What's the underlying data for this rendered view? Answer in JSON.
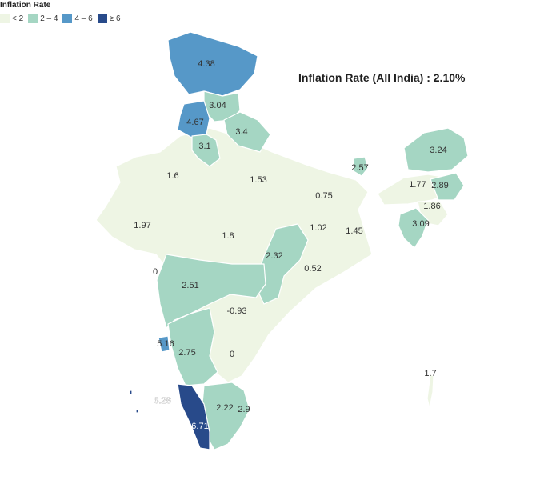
{
  "legend": {
    "title": "Inflation Rate",
    "items": [
      {
        "label": "< 2",
        "color": "#eef5e4"
      },
      {
        "label": "2 – 4",
        "color": "#a5d6c3"
      },
      {
        "label": "4 – 6",
        "color": "#5698c8"
      },
      {
        "label": "≥ 6",
        "color": "#284a8a"
      }
    ]
  },
  "headline": "Inflation Rate (All India) : 2.10%",
  "regions": [
    {
      "id": "jammu-kashmir",
      "value": "4.38",
      "bin": 2
    },
    {
      "id": "himachal",
      "value": "3.04",
      "bin": 1
    },
    {
      "id": "punjab",
      "value": "4.67",
      "bin": 2
    },
    {
      "id": "uttarakhand",
      "value": "3.4",
      "bin": 1
    },
    {
      "id": "haryana",
      "value": "3.1",
      "bin": 1
    },
    {
      "id": "rajasthan",
      "value": "1.6",
      "bin": 0
    },
    {
      "id": "uttar-pradesh",
      "value": "1.53",
      "bin": 0
    },
    {
      "id": "bihar",
      "value": "0.75",
      "bin": 0
    },
    {
      "id": "sikkim",
      "value": "2.57",
      "bin": 1
    },
    {
      "id": "arunachal",
      "value": "3.24",
      "bin": 1
    },
    {
      "id": "assam",
      "value": "1.77",
      "bin": 0
    },
    {
      "id": "nagaland",
      "value": "2.89",
      "bin": 1
    },
    {
      "id": "manipur",
      "value": "1.86",
      "bin": 0
    },
    {
      "id": "tripura",
      "value": "3.09",
      "bin": 1
    },
    {
      "id": "gujarat",
      "value": "1.97",
      "bin": 0
    },
    {
      "id": "madhya-pradesh",
      "value": "1.8",
      "bin": 0
    },
    {
      "id": "jharkhand",
      "value": "1.02",
      "bin": 0
    },
    {
      "id": "west-bengal",
      "value": "1.45",
      "bin": 0
    },
    {
      "id": "chhattisgarh",
      "value": "2.32",
      "bin": 1
    },
    {
      "id": "odisha",
      "value": "0.52",
      "bin": 0
    },
    {
      "id": "daman",
      "value": "0",
      "bin": 0
    },
    {
      "id": "maharashtra",
      "value": "2.51",
      "bin": 1
    },
    {
      "id": "telangana",
      "value": "-0.93",
      "bin": 0
    },
    {
      "id": "goa",
      "value": "5.16",
      "bin": 2
    },
    {
      "id": "karnataka",
      "value": "2.75",
      "bin": 1
    },
    {
      "id": "andhra-pradesh",
      "value": "0",
      "bin": 0
    },
    {
      "id": "lakshadweep",
      "value": "6.28",
      "bin": 3
    },
    {
      "id": "kerala",
      "value": "6.71",
      "bin": 3
    },
    {
      "id": "tamil-nadu",
      "value": "2.22",
      "bin": 1
    },
    {
      "id": "puducherry",
      "value": "2.9",
      "bin": 1
    },
    {
      "id": "andaman",
      "value": "1.7",
      "bin": 0
    }
  ]
}
